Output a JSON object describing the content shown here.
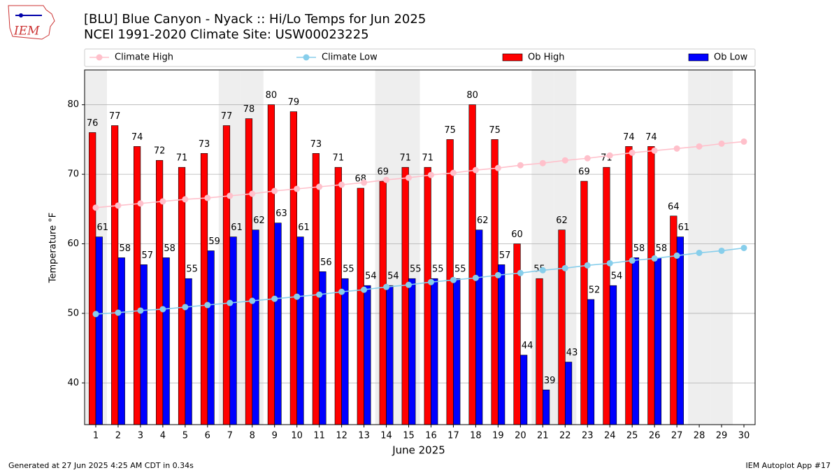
{
  "chart_data": {
    "type": "bar",
    "title": "[BLU] Blue Canyon - Nyack :: Hi/Lo Temps for Jun 2025",
    "subtitle": "NCEI 1991-2020 Climate Site: USW00023225",
    "xlabel": "June 2025",
    "ylabel": "Temperature °F",
    "x": [
      1,
      2,
      3,
      4,
      5,
      6,
      7,
      8,
      9,
      10,
      11,
      12,
      13,
      14,
      15,
      16,
      17,
      18,
      19,
      20,
      21,
      22,
      23,
      24,
      25,
      26,
      27,
      28,
      29,
      30
    ],
    "xlim": [
      0.5,
      30.5
    ],
    "xticks": [
      1,
      2,
      3,
      4,
      5,
      6,
      7,
      8,
      9,
      10,
      11,
      12,
      13,
      14,
      15,
      16,
      17,
      18,
      19,
      20,
      21,
      22,
      23,
      24,
      25,
      26,
      27,
      28,
      29,
      30
    ],
    "ylim": [
      34,
      85
    ],
    "yticks": [
      40,
      50,
      60,
      70,
      80
    ],
    "grid": true,
    "shaded_days": [
      1,
      7,
      8,
      14,
      15,
      21,
      22,
      28,
      29
    ],
    "series": [
      {
        "name": "Climate High",
        "type": "line",
        "color": "#ffc0cb",
        "values": [
          65.2,
          65.5,
          65.8,
          66.1,
          66.4,
          66.6,
          66.9,
          67.2,
          67.6,
          67.9,
          68.2,
          68.5,
          68.8,
          69.2,
          69.5,
          69.9,
          70.2,
          70.6,
          70.9,
          71.3,
          71.6,
          72.0,
          72.3,
          72.7,
          73.1,
          73.4,
          73.7,
          74.0,
          74.4,
          74.7
        ]
      },
      {
        "name": "Climate Low",
        "type": "line",
        "color": "#87ceeb",
        "values": [
          49.9,
          50.1,
          50.4,
          50.6,
          50.9,
          51.2,
          51.5,
          51.8,
          52.1,
          52.4,
          52.7,
          53.1,
          53.4,
          53.8,
          54.1,
          54.5,
          54.8,
          55.1,
          55.5,
          55.8,
          56.2,
          56.5,
          56.9,
          57.2,
          57.6,
          57.9,
          58.3,
          58.7,
          59.0,
          59.4
        ]
      },
      {
        "name": "Ob High",
        "type": "bar",
        "color": "#ff0000",
        "values": [
          76,
          77,
          74,
          72,
          71,
          73,
          77,
          78,
          80,
          79,
          73,
          71,
          68,
          69,
          71,
          71,
          75,
          80,
          75,
          60,
          55,
          62,
          69,
          71,
          74,
          74,
          64,
          null,
          null,
          null
        ]
      },
      {
        "name": "Ob Low",
        "type": "bar",
        "color": "#0000ff",
        "values": [
          61,
          58,
          57,
          58,
          55,
          59,
          61,
          62,
          63,
          61,
          56,
          55,
          54,
          54,
          55,
          55,
          55,
          62,
          57,
          44,
          39,
          43,
          52,
          54,
          58,
          58,
          61,
          null,
          null,
          null
        ]
      }
    ],
    "legend": "top",
    "footer_left": "Generated at 27 Jun 2025 4:25 AM CDT in 0.34s",
    "footer_right": "IEM Autoplot App #17",
    "logo_text": "IEM"
  }
}
